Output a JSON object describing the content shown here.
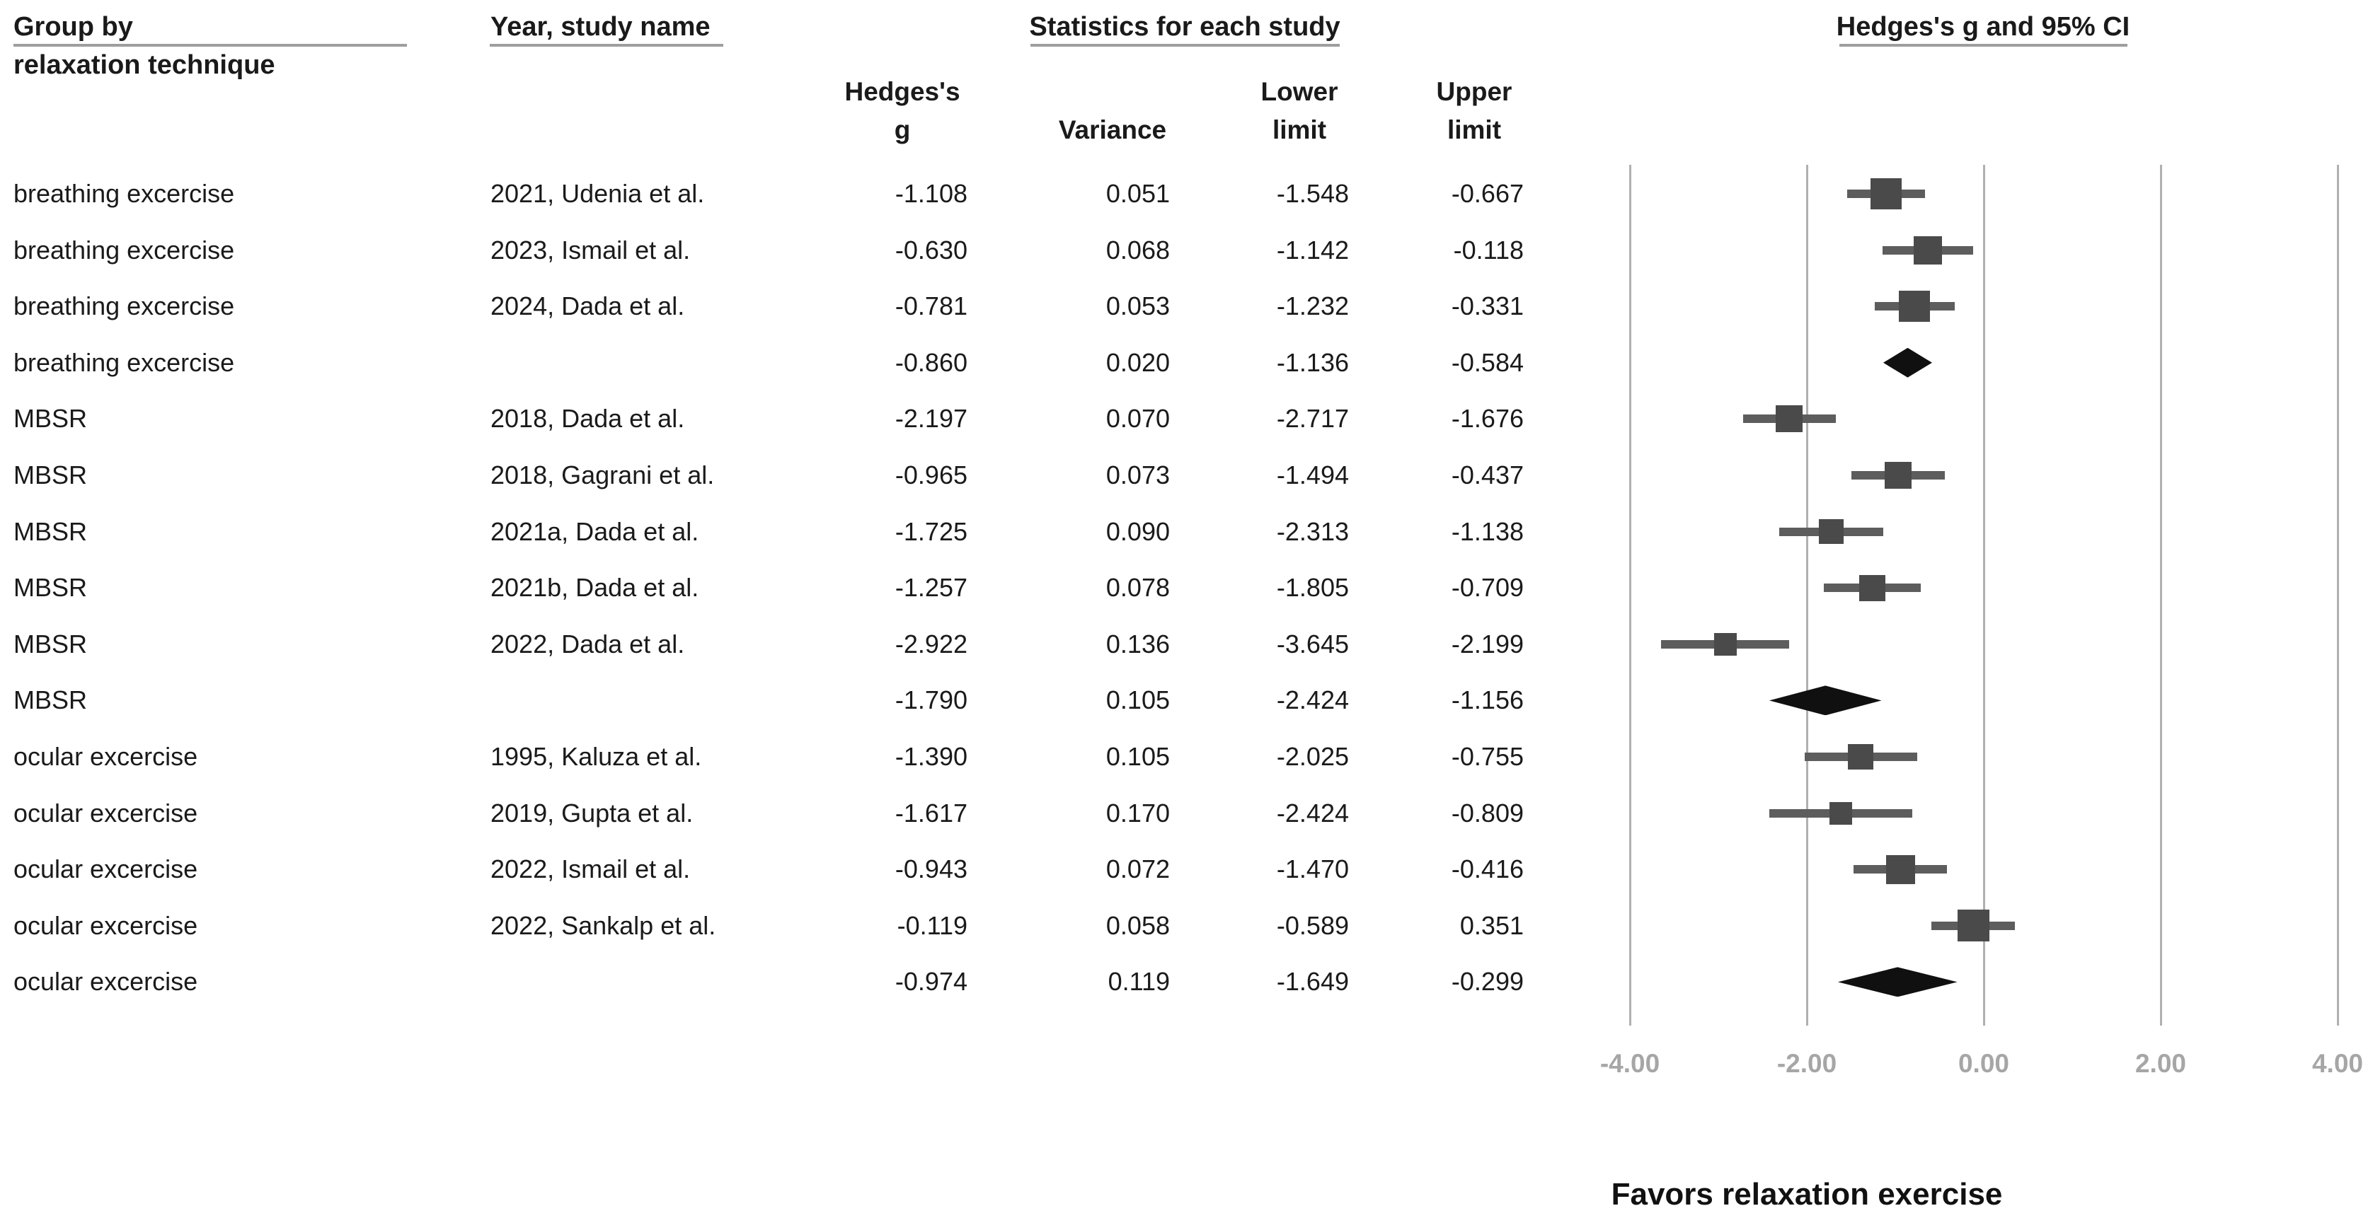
{
  "headers": {
    "group_by_line1": "Group by",
    "group_by_line2": "relaxation technique",
    "year_study": "Year, study name",
    "stats": "Statistics for each study",
    "plot_title": "Hedges's g and 95% CI",
    "col_g_line1": "Hedges's",
    "col_g_line2": "g",
    "col_variance": "Variance",
    "col_lower_line1": "Lower",
    "col_lower_line2": "limit",
    "col_upper_line1": "Upper",
    "col_upper_line2": "limit"
  },
  "footer": {
    "favors_label": "Favors relaxation exercise"
  },
  "colors": {
    "square": "#4a4a4a",
    "ci_line": "#5d5d5d",
    "diamond": "#101010",
    "gridline": "#b0b0b0",
    "axis_label": "#a6a6a6",
    "underline": "#9e9e9e",
    "text": "#1a1a1a"
  },
  "chart_data": {
    "type": "scatter",
    "subtype": "forest-plot",
    "title": "Hedges's g and 95% CI",
    "xlabel": "Hedges's g",
    "xlim": [
      -4,
      4
    ],
    "x_ticks": [
      {
        "value": -4,
        "label": "-4.00"
      },
      {
        "value": -2,
        "label": "-2.00"
      },
      {
        "value": 0,
        "label": "0.00"
      },
      {
        "value": 2,
        "label": "2.00"
      },
      {
        "value": 4,
        "label": "4.00"
      }
    ],
    "grid": true,
    "favors_label": "Favors relaxation exercise",
    "rows": [
      {
        "group": "breathing excercise",
        "study": "2021, Udenia et al.",
        "kind": "study",
        "g": -1.108,
        "variance": 0.051,
        "lower": -1.548,
        "upper": -0.667
      },
      {
        "group": "breathing excercise",
        "study": "2023, Ismail et al.",
        "kind": "study",
        "g": -0.63,
        "variance": 0.068,
        "lower": -1.142,
        "upper": -0.118
      },
      {
        "group": "breathing excercise",
        "study": "2024, Dada et al.",
        "kind": "study",
        "g": -0.781,
        "variance": 0.053,
        "lower": -1.232,
        "upper": -0.331
      },
      {
        "group": "breathing excercise",
        "study": "",
        "kind": "summary",
        "g": -0.86,
        "variance": 0.02,
        "lower": -1.136,
        "upper": -0.584
      },
      {
        "group": "MBSR",
        "study": "2018, Dada et al.",
        "kind": "study",
        "g": -2.197,
        "variance": 0.07,
        "lower": -2.717,
        "upper": -1.676
      },
      {
        "group": "MBSR",
        "study": "2018, Gagrani et al.",
        "kind": "study",
        "g": -0.965,
        "variance": 0.073,
        "lower": -1.494,
        "upper": -0.437
      },
      {
        "group": "MBSR",
        "study": "2021a, Dada et al.",
        "kind": "study",
        "g": -1.725,
        "variance": 0.09,
        "lower": -2.313,
        "upper": -1.138
      },
      {
        "group": "MBSR",
        "study": "2021b, Dada et al.",
        "kind": "study",
        "g": -1.257,
        "variance": 0.078,
        "lower": -1.805,
        "upper": -0.709
      },
      {
        "group": "MBSR",
        "study": "2022, Dada et al.",
        "kind": "study",
        "g": -2.922,
        "variance": 0.136,
        "lower": -3.645,
        "upper": -2.199
      },
      {
        "group": "MBSR",
        "study": "",
        "kind": "summary",
        "g": -1.79,
        "variance": 0.105,
        "lower": -2.424,
        "upper": -1.156
      },
      {
        "group": "ocular excercise",
        "study": "1995, Kaluza et al.",
        "kind": "study",
        "g": -1.39,
        "variance": 0.105,
        "lower": -2.025,
        "upper": -0.755
      },
      {
        "group": "ocular excercise",
        "study": "2019, Gupta et al.",
        "kind": "study",
        "g": -1.617,
        "variance": 0.17,
        "lower": -2.424,
        "upper": -0.809
      },
      {
        "group": "ocular excercise",
        "study": "2022, Ismail et al.",
        "kind": "study",
        "g": -0.943,
        "variance": 0.072,
        "lower": -1.47,
        "upper": -0.416
      },
      {
        "group": "ocular excercise",
        "study": "2022, Sankalp et al.",
        "kind": "study",
        "g": -0.119,
        "variance": 0.058,
        "lower": -0.589,
        "upper": 0.351
      },
      {
        "group": "ocular excercise",
        "study": "",
        "kind": "summary",
        "g": -0.974,
        "variance": 0.119,
        "lower": -1.649,
        "upper": -0.299
      }
    ]
  }
}
